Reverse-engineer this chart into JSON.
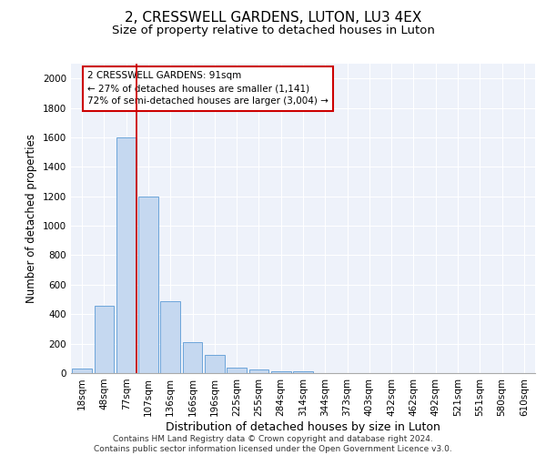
{
  "title": "2, CRESSWELL GARDENS, LUTON, LU3 4EX",
  "subtitle": "Size of property relative to detached houses in Luton",
  "xlabel": "Distribution of detached houses by size in Luton",
  "ylabel": "Number of detached properties",
  "categories": [
    "18sqm",
    "48sqm",
    "77sqm",
    "107sqm",
    "136sqm",
    "166sqm",
    "196sqm",
    "225sqm",
    "255sqm",
    "284sqm",
    "314sqm",
    "344sqm",
    "373sqm",
    "403sqm",
    "432sqm",
    "462sqm",
    "492sqm",
    "521sqm",
    "551sqm",
    "580sqm",
    "610sqm"
  ],
  "values": [
    30,
    460,
    1600,
    1200,
    490,
    210,
    125,
    35,
    25,
    15,
    10,
    0,
    0,
    0,
    0,
    0,
    0,
    0,
    0,
    0,
    0
  ],
  "bar_color": "#c5d8f0",
  "bar_edge_color": "#5b9bd5",
  "vline_x_index": 2,
  "annotation_text": "2 CRESSWELL GARDENS: 91sqm\n← 27% of detached houses are smaller (1,141)\n72% of semi-detached houses are larger (3,004) →",
  "annotation_box_color": "#ffffff",
  "annotation_box_edge_color": "#cc0000",
  "vline_color": "#cc0000",
  "ylim": [
    0,
    2100
  ],
  "yticks": [
    0,
    200,
    400,
    600,
    800,
    1000,
    1200,
    1400,
    1600,
    1800,
    2000
  ],
  "background_color": "#eef2fa",
  "footer_line1": "Contains HM Land Registry data © Crown copyright and database right 2024.",
  "footer_line2": "Contains public sector information licensed under the Open Government Licence v3.0.",
  "title_fontsize": 11,
  "subtitle_fontsize": 9.5,
  "axis_label_fontsize": 8.5,
  "tick_fontsize": 7.5,
  "annotation_fontsize": 7.5,
  "footer_fontsize": 6.5
}
